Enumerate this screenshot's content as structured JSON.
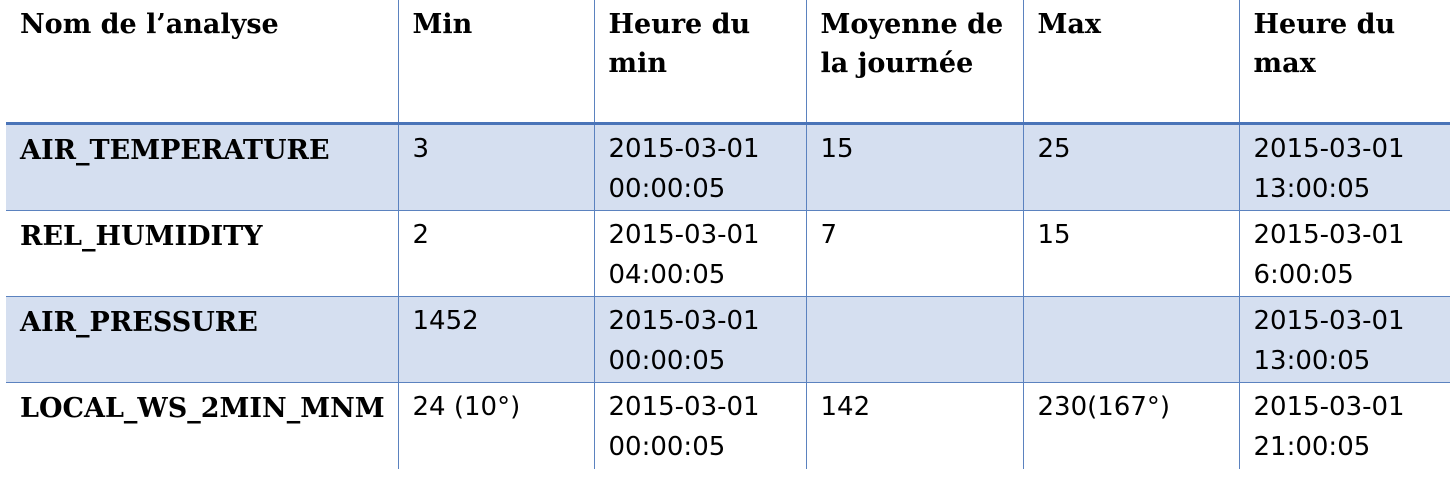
{
  "table": {
    "headers": [
      "Nom de l’analyse",
      "Min",
      "Heure du min",
      "Moyenne de la journée",
      "Max",
      "Heure du max"
    ],
    "rows": [
      {
        "name": "AIR_TEMPERATURE",
        "min": "3",
        "min_time": "2015-03-01 00:00:05",
        "mean": "15",
        "max": "25",
        "max_time": "2015-03-01 13:00:05"
      },
      {
        "name": "REL_HUMIDITY",
        "min": "2",
        "min_time": "2015-03-01 04:00:05",
        "mean": "7",
        "max": "15",
        "max_time": "2015-03-01 6:00:05"
      },
      {
        "name": "AIR_PRESSURE",
        "min": "1452",
        "min_time": "2015-03-01 00:00:05",
        "mean": "",
        "max": "",
        "max_time": "2015-03-01 13:00:05"
      },
      {
        "name": "LOCAL_WS_2MIN_MNM",
        "min": "24 (10°)",
        "min_time": "2015-03-01 00:00:05",
        "mean": "142",
        "max": "230(167°)",
        "max_time": "2015-03-01 21:00:05"
      }
    ]
  },
  "colors": {
    "border": "#5b82bf",
    "header_rule": "#4a74b8",
    "band_fill": "#d5dff0"
  }
}
